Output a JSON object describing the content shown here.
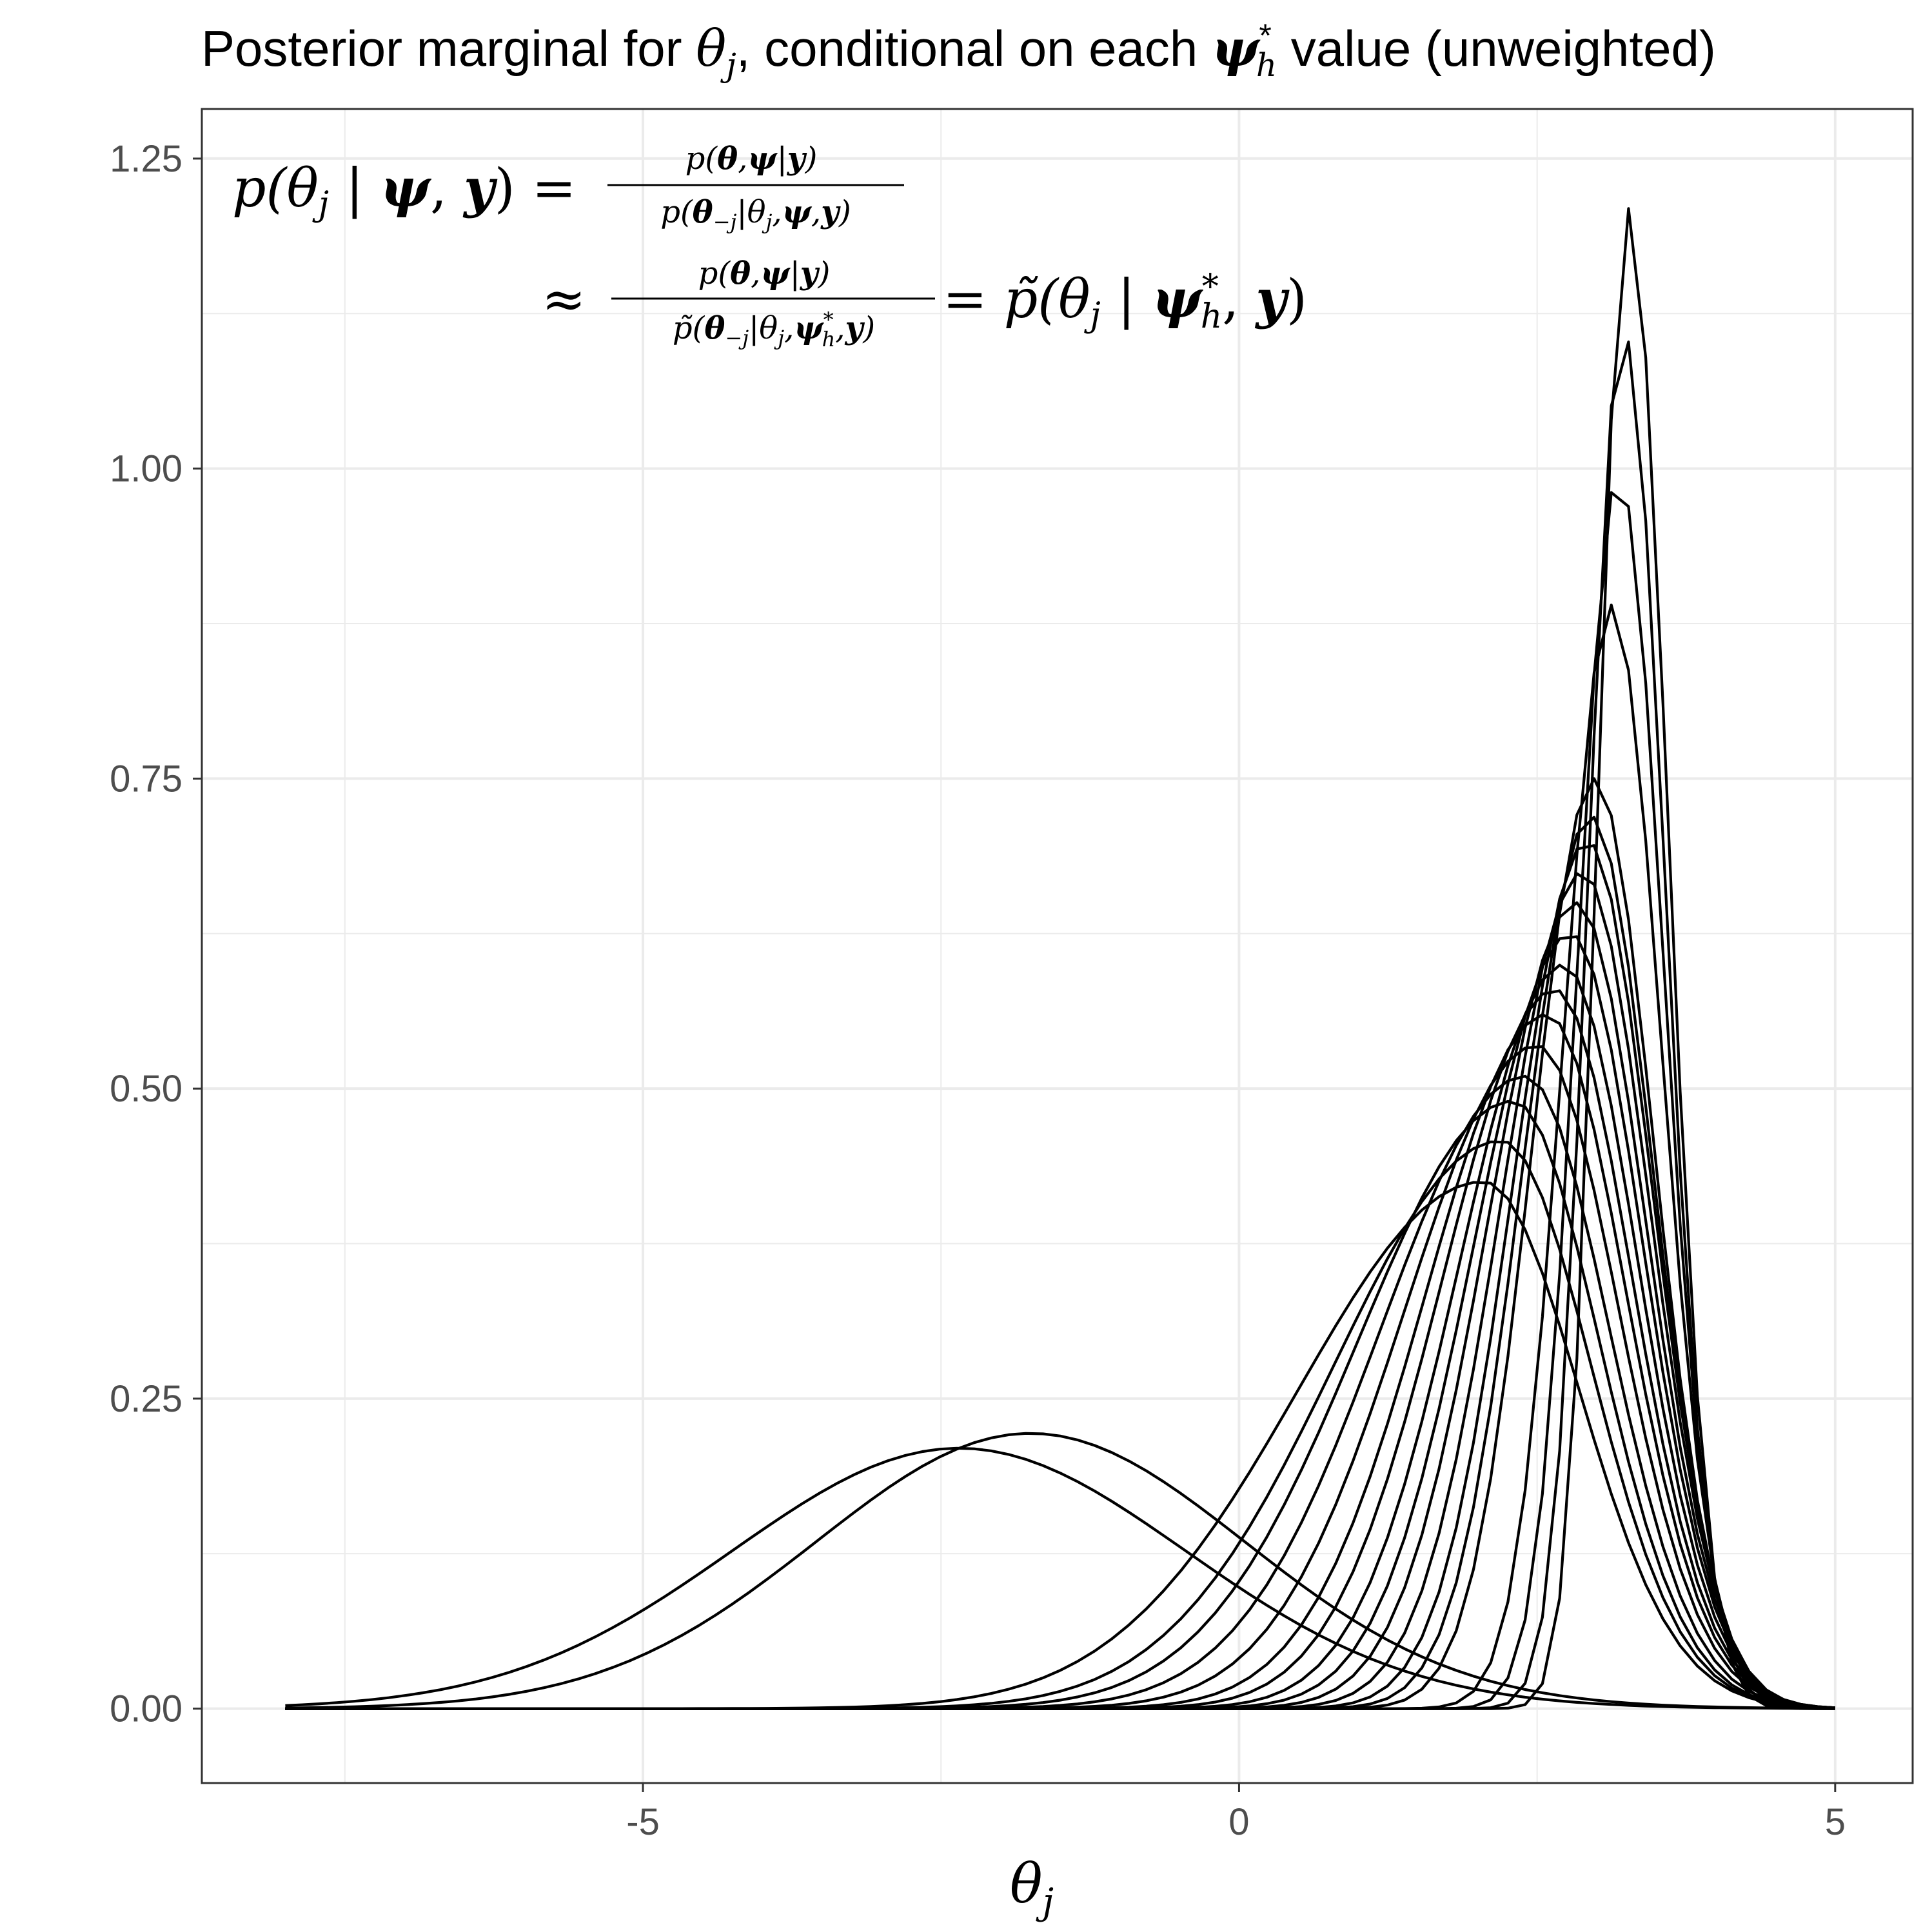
{
  "chart_data": {
    "type": "line",
    "title": "Posterior marginal for θj, conditional on each ψh* value (unweighted)",
    "xlabel": "θj",
    "ylabel": "",
    "xlim": [
      -8.7,
      5.65
    ],
    "ylim": [
      -0.06,
      1.29
    ],
    "x_ticks": [
      -5,
      0,
      5
    ],
    "x_tick_labels": [
      "-5",
      "0",
      "5"
    ],
    "y_ticks": [
      0,
      0.25,
      0.5,
      0.75,
      1.0,
      1.25
    ],
    "y_tick_labels": [
      "0.00",
      "0.25",
      "0.50",
      "0.75",
      "1.00",
      "1.25"
    ],
    "grid": true,
    "annotation": "p(θj | ψ, y) = p(θ,ψ|y) / p(θ−j|θj,ψ,y) ≈ p(θ,ψ|y) / p̃(θ−j|θj,ψh*,y) = p̃(θj | ψh*, y)",
    "x_range": [
      -8,
      5
    ],
    "series": [
      {
        "type": "normal",
        "mode": -2.35,
        "peak": 0.21
      },
      {
        "type": "normal",
        "mode": -1.75,
        "peak": 0.222
      },
      {
        "type": "skew",
        "mode": 2.05,
        "peak": 0.425,
        "sl": 1.55,
        "sr": 0.8
      },
      {
        "type": "skew",
        "mode": 2.2,
        "peak": 0.458,
        "sl": 1.4,
        "sr": 0.75
      },
      {
        "type": "skew",
        "mode": 2.3,
        "peak": 0.49,
        "sl": 1.3,
        "sr": 0.72
      },
      {
        "type": "skew",
        "mode": 2.4,
        "peak": 0.51,
        "sl": 1.2,
        "sr": 0.7
      },
      {
        "type": "skew",
        "mode": 2.5,
        "peak": 0.535,
        "sl": 1.1,
        "sr": 0.68
      },
      {
        "type": "skew",
        "mode": 2.58,
        "peak": 0.56,
        "sl": 1.0,
        "sr": 0.66
      },
      {
        "type": "skew",
        "mode": 2.65,
        "peak": 0.58,
        "sl": 0.93,
        "sr": 0.64
      },
      {
        "type": "skew",
        "mode": 2.72,
        "peak": 0.6,
        "sl": 0.86,
        "sr": 0.62
      },
      {
        "type": "skew",
        "mode": 2.78,
        "peak": 0.625,
        "sl": 0.8,
        "sr": 0.6
      },
      {
        "type": "skew",
        "mode": 2.83,
        "peak": 0.65,
        "sl": 0.74,
        "sr": 0.58
      },
      {
        "type": "skew",
        "mode": 2.88,
        "peak": 0.675,
        "sl": 0.68,
        "sr": 0.56
      },
      {
        "type": "skew",
        "mode": 2.92,
        "peak": 0.7,
        "sl": 0.62,
        "sr": 0.54
      },
      {
        "type": "skew",
        "mode": 2.95,
        "peak": 0.72,
        "sl": 0.57,
        "sr": 0.52
      },
      {
        "type": "skew",
        "mode": 2.98,
        "peak": 0.75,
        "sl": 0.52,
        "sr": 0.5
      },
      {
        "type": "skew",
        "mode": 3.12,
        "peak": 0.89,
        "sl": 0.4,
        "sr": 0.42
      },
      {
        "type": "skew",
        "mode": 3.18,
        "peak": 0.995,
        "sl": 0.34,
        "sr": 0.38
      },
      {
        "type": "skew",
        "mode": 3.22,
        "peak": 1.112,
        "sl": 0.29,
        "sr": 0.35
      },
      {
        "type": "skew",
        "mode": 3.26,
        "peak": 1.21,
        "sl": 0.25,
        "sr": 0.33
      }
    ]
  }
}
